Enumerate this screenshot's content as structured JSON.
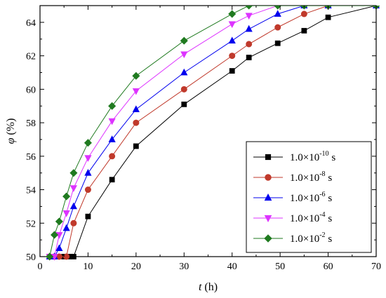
{
  "chart_data": {
    "type": "line",
    "xlabel_var": "t",
    "xlabel_unit": " (h)",
    "ylabel_var": "φ",
    "ylabel_unit": " (%)",
    "xlim": [
      0,
      70
    ],
    "ylim": [
      50,
      65
    ],
    "xticks": [
      0,
      10,
      20,
      30,
      40,
      50,
      60,
      70
    ],
    "yticks": [
      50,
      52,
      54,
      56,
      58,
      60,
      62,
      64
    ],
    "grid": false,
    "legend_position": "bottom-right",
    "series": [
      {
        "name_base": "1.0×10",
        "name_exp": "-10",
        "name_unit": " s",
        "color": "#000000",
        "marker": "square",
        "points": [
          [
            2,
            50.0
          ],
          [
            3,
            50.0
          ],
          [
            5,
            50.0
          ],
          [
            6,
            50.0
          ],
          [
            7,
            50.0
          ],
          [
            10,
            52.4
          ],
          [
            15,
            54.6
          ],
          [
            20,
            56.6
          ],
          [
            30,
            59.1
          ],
          [
            40,
            61.1
          ],
          [
            43.5,
            61.9
          ],
          [
            49.5,
            62.75
          ],
          [
            55,
            63.5
          ],
          [
            60,
            64.3
          ],
          [
            70,
            65.0
          ]
        ]
      },
      {
        "name_base": "1.0×10",
        "name_exp": "-8",
        "name_unit": " s",
        "color": "#c0392b",
        "marker": "circle",
        "points": [
          [
            2,
            50.0
          ],
          [
            3,
            50.0
          ],
          [
            4,
            50.0
          ],
          [
            5.5,
            50.0
          ],
          [
            7,
            52.0
          ],
          [
            10,
            54.0
          ],
          [
            15,
            56.0
          ],
          [
            20,
            58.0
          ],
          [
            30,
            60.0
          ],
          [
            40,
            62.0
          ],
          [
            43.5,
            62.7
          ],
          [
            49.5,
            63.7
          ],
          [
            55,
            64.5
          ],
          [
            60,
            65.0
          ],
          [
            70,
            65.0
          ]
        ]
      },
      {
        "name_base": "1.0×10",
        "name_exp": "-6",
        "name_unit": " s",
        "color": "#0000ee",
        "marker": "triangle-up",
        "points": [
          [
            2,
            50.0
          ],
          [
            3,
            50.0
          ],
          [
            4,
            50.5
          ],
          [
            5.5,
            51.7
          ],
          [
            7,
            53.0
          ],
          [
            10,
            55.0
          ],
          [
            15,
            57.0
          ],
          [
            20,
            58.8
          ],
          [
            30,
            61.0
          ],
          [
            40,
            62.9
          ],
          [
            43.5,
            63.6
          ],
          [
            49.5,
            64.5
          ],
          [
            55,
            65.0
          ],
          [
            60,
            65.0
          ],
          [
            70,
            65.0
          ]
        ]
      },
      {
        "name_base": "1.0×10",
        "name_exp": "-4",
        "name_unit": " s",
        "color": "#dd33ff",
        "marker": "triangle-down",
        "points": [
          [
            2,
            50.0
          ],
          [
            3,
            50.0
          ],
          [
            4,
            51.3
          ],
          [
            5.5,
            52.6
          ],
          [
            7,
            54.1
          ],
          [
            10,
            55.9
          ],
          [
            15,
            58.1
          ],
          [
            20,
            59.9
          ],
          [
            30,
            62.1
          ],
          [
            40,
            63.9
          ],
          [
            43.5,
            64.4
          ],
          [
            49.5,
            65.0
          ],
          [
            55,
            65.0
          ],
          [
            60,
            65.0
          ],
          [
            70,
            65.0
          ]
        ]
      },
      {
        "name_base": "1.0×10",
        "name_exp": "-2",
        "name_unit": " s",
        "color": "#1f7a1f",
        "marker": "diamond",
        "points": [
          [
            2,
            50.0
          ],
          [
            3,
            51.3
          ],
          [
            4,
            52.1
          ],
          [
            5.5,
            53.6
          ],
          [
            7,
            55.0
          ],
          [
            10,
            56.8
          ],
          [
            15,
            59.0
          ],
          [
            20,
            60.8
          ],
          [
            30,
            62.9
          ],
          [
            40,
            64.5
          ],
          [
            43.5,
            65.0
          ],
          [
            49.5,
            65.0
          ],
          [
            55,
            65.0
          ],
          [
            60,
            65.0
          ],
          [
            70,
            65.0
          ]
        ]
      }
    ]
  }
}
